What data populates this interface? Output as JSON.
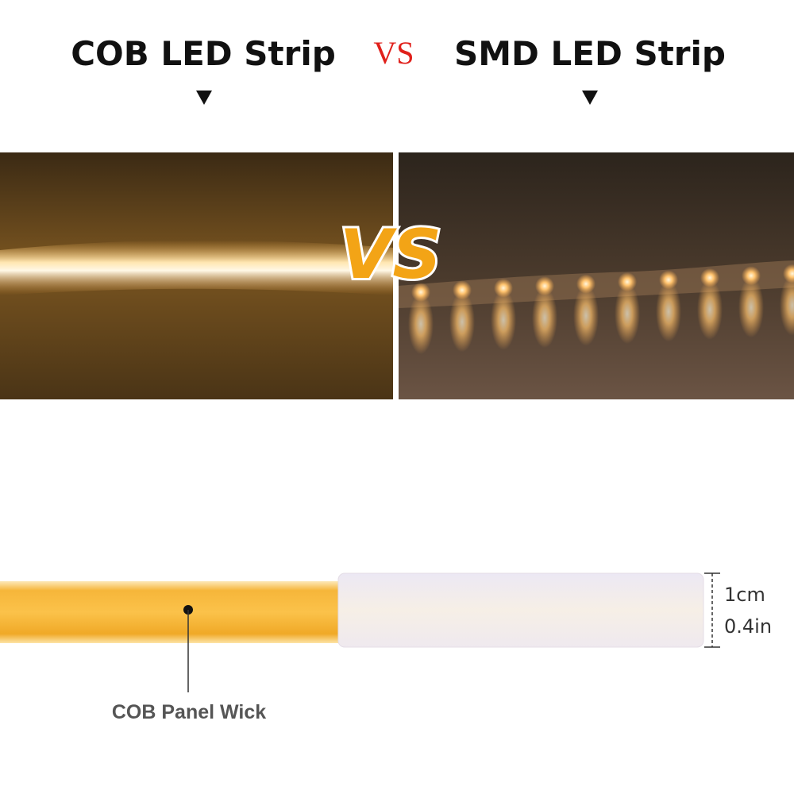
{
  "header": {
    "left_title": "COB LED Strip",
    "vs": "VS",
    "right_title": "SMD LED Strip"
  },
  "badge": "VS",
  "dimension": {
    "metric": "1cm",
    "imperial": "0.4in"
  },
  "callout": "COB Panel Wick"
}
